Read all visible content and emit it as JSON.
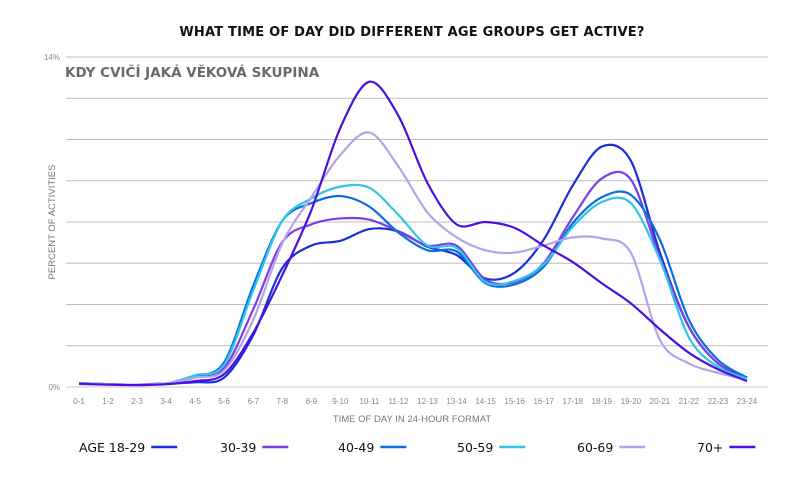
{
  "chart_data": {
    "type": "line",
    "title": "WHAT TIME OF DAY DID DIFFERENT AGE GROUPS GET ACTIVE?",
    "subtitle": "KDY CVIČÍ JAKÁ VĚKOVÁ SKUPINA",
    "xlabel": "TIME OF DAY IN 24-HOUR FORMAT",
    "ylabel": "PERCENT OF ACTIVITIES",
    "ylim": [
      0,
      14
    ],
    "ytick_labels": [
      "0%",
      "14%"
    ],
    "grid_step": 1.75,
    "grid": true,
    "legend_position": "bottom",
    "categories": [
      "0-1",
      "1-2",
      "2-3",
      "3-4",
      "4-5",
      "5-6",
      "6-7",
      "7-8",
      "8-9",
      "9-10",
      "10-11",
      "11-12",
      "12-13",
      "13-14",
      "14-15",
      "15-16",
      "16-17",
      "17-18",
      "18-19",
      "19-20",
      "20-21",
      "21-22",
      "22-23",
      "23-24"
    ],
    "series": [
      {
        "name": "AGE 18-29",
        "color": "#1a2fd6",
        "values": [
          0.17,
          0.12,
          0.1,
          0.15,
          0.2,
          0.4,
          2.2,
          5.05,
          6.0,
          6.2,
          6.7,
          6.6,
          5.95,
          5.6,
          4.6,
          4.85,
          6.25,
          8.55,
          10.2,
          9.6,
          5.7,
          2.55,
          1.0,
          0.4
        ]
      },
      {
        "name": "30-39",
        "color": "#7b3fe4",
        "values": [
          0.15,
          0.12,
          0.1,
          0.15,
          0.4,
          0.8,
          3.3,
          6.15,
          6.9,
          7.15,
          7.1,
          6.6,
          6.0,
          6.0,
          4.55,
          4.45,
          5.25,
          7.2,
          8.85,
          8.8,
          5.5,
          2.55,
          1.0,
          0.4
        ]
      },
      {
        "name": "40-49",
        "color": "#0a6de0",
        "values": [
          0.15,
          0.12,
          0.1,
          0.15,
          0.45,
          1.05,
          4.3,
          7.05,
          7.8,
          8.1,
          7.65,
          6.55,
          5.8,
          5.75,
          4.4,
          4.35,
          5.1,
          6.95,
          8.05,
          8.15,
          6.25,
          2.85,
          1.15,
          0.4
        ]
      },
      {
        "name": "50-59",
        "color": "#2ec6e6",
        "values": [
          0.15,
          0.12,
          0.1,
          0.15,
          0.5,
          0.95,
          4.1,
          7.05,
          8.0,
          8.5,
          8.45,
          7.3,
          6.0,
          5.9,
          4.45,
          4.5,
          5.2,
          6.8,
          7.85,
          7.8,
          5.4,
          2.1,
          0.85,
          0.35
        ]
      },
      {
        "name": "60-69",
        "color": "#b3a3e8",
        "values": [
          0.15,
          0.12,
          0.1,
          0.15,
          0.4,
          0.7,
          2.85,
          6.1,
          8.05,
          9.85,
          10.8,
          9.35,
          7.4,
          6.35,
          5.8,
          5.7,
          6.0,
          6.35,
          6.3,
          5.7,
          2.0,
          1.0,
          0.6,
          0.3
        ]
      },
      {
        "name": "70+",
        "color": "#4b0fe0",
        "values": [
          0.13,
          0.1,
          0.08,
          0.12,
          0.25,
          0.55,
          2.3,
          4.75,
          7.5,
          11.0,
          12.95,
          11.5,
          8.65,
          6.9,
          7.0,
          6.75,
          6.0,
          5.3,
          4.4,
          3.55,
          2.45,
          1.45,
          0.75,
          0.25
        ]
      }
    ]
  }
}
